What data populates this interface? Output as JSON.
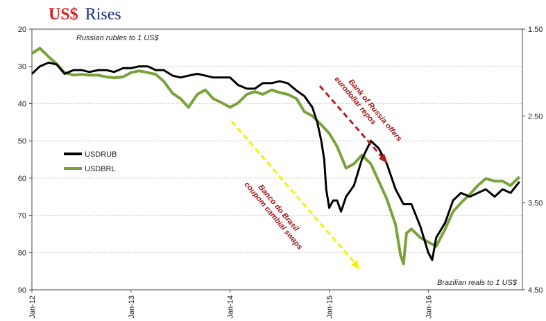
{
  "title": {
    "accent": "US$",
    "rest": "Rises"
  },
  "colors": {
    "title_accent": "#d32020",
    "title_rest": "#1f2a7a",
    "usdrub": "#000000",
    "usdbrl": "#79a23a",
    "arrow_yellow": "#f2f200",
    "arrow_red": "#b02020",
    "text_red": "#a01818"
  },
  "chart_data": {
    "type": "line",
    "x_ticks": [
      "Jan-12",
      "Jan-13",
      "Jan-14",
      "Jan-15",
      "Jan-16"
    ],
    "left_axis": {
      "label": "Russian rubles to 1 US$",
      "ticks": [
        20,
        30,
        40,
        50,
        60,
        70,
        80,
        90
      ],
      "range": [
        20,
        90
      ],
      "inverted": true
    },
    "right_axis": {
      "label": "Brazilian reals to 1 US$",
      "ticks": [
        "1.50",
        "2.50",
        "3.50",
        "4.50"
      ],
      "range": [
        1.5,
        4.5
      ],
      "inverted": true
    },
    "legend": [
      "USDRUB",
      "USDBRL"
    ],
    "annotations": [
      "Banco do Brasil coupom cambial swaps",
      "Bank of Russia offers eurodollar repos"
    ],
    "series": [
      {
        "name": "USDRUB",
        "axis": "left",
        "x": [
          2012.0,
          2012.08,
          2012.17,
          2012.25,
          2012.33,
          2012.42,
          2012.5,
          2012.58,
          2012.67,
          2012.75,
          2012.83,
          2012.92,
          2013.0,
          2013.08,
          2013.17,
          2013.25,
          2013.33,
          2013.42,
          2013.5,
          2013.58,
          2013.67,
          2013.75,
          2013.83,
          2013.92,
          2014.0,
          2014.08,
          2014.17,
          2014.25,
          2014.33,
          2014.42,
          2014.5,
          2014.58,
          2014.67,
          2014.75,
          2014.83,
          2014.88,
          2014.92,
          2014.95,
          2014.97,
          2015.0,
          2015.04,
          2015.08,
          2015.12,
          2015.17,
          2015.25,
          2015.33,
          2015.42,
          2015.5,
          2015.58,
          2015.67,
          2015.75,
          2015.83,
          2015.92,
          2016.0,
          2016.04,
          2016.08,
          2016.17,
          2016.25,
          2016.33,
          2016.42,
          2016.5,
          2016.58,
          2016.67,
          2016.75,
          2016.83,
          2016.92
        ],
        "y": [
          32,
          30,
          29,
          29.5,
          32,
          31,
          31,
          31.5,
          31,
          31,
          31.5,
          30.5,
          30.5,
          30,
          30,
          31,
          31,
          32.5,
          33,
          32.5,
          32,
          32.5,
          33,
          33,
          33,
          35,
          36,
          36,
          34.5,
          34.5,
          34,
          34.5,
          36.5,
          38,
          41,
          45,
          50,
          55,
          63,
          68,
          66,
          66,
          69,
          65,
          62,
          55,
          50,
          52,
          56,
          63,
          67,
          67,
          73,
          80,
          82,
          76,
          72,
          66,
          64,
          65,
          64,
          63,
          65,
          63,
          64,
          61
        ]
      },
      {
        "name": "USDBRL",
        "axis": "right",
        "x": [
          2012.0,
          2012.08,
          2012.17,
          2012.25,
          2012.33,
          2012.42,
          2012.5,
          2012.58,
          2012.67,
          2012.75,
          2012.83,
          2012.92,
          2013.0,
          2013.08,
          2013.17,
          2013.25,
          2013.33,
          2013.42,
          2013.5,
          2013.58,
          2013.67,
          2013.75,
          2013.83,
          2013.92,
          2014.0,
          2014.08,
          2014.17,
          2014.25,
          2014.33,
          2014.42,
          2014.5,
          2014.58,
          2014.67,
          2014.75,
          2014.83,
          2014.92,
          2015.0,
          2015.08,
          2015.17,
          2015.25,
          2015.33,
          2015.42,
          2015.5,
          2015.58,
          2015.67,
          2015.72,
          2015.75,
          2015.78,
          2015.83,
          2015.92,
          2016.0,
          2016.08,
          2016.17,
          2016.25,
          2016.33,
          2016.42,
          2016.5,
          2016.58,
          2016.67,
          2016.75,
          2016.83,
          2016.92
        ],
        "y": [
          1.78,
          1.72,
          1.82,
          1.9,
          2.0,
          2.03,
          2.02,
          2.03,
          2.03,
          2.05,
          2.06,
          2.05,
          2.0,
          1.98,
          2.0,
          2.02,
          2.1,
          2.24,
          2.3,
          2.4,
          2.25,
          2.2,
          2.3,
          2.35,
          2.4,
          2.35,
          2.25,
          2.22,
          2.25,
          2.2,
          2.23,
          2.25,
          2.3,
          2.45,
          2.5,
          2.6,
          2.7,
          2.85,
          3.1,
          3.05,
          2.95,
          3.05,
          3.25,
          3.45,
          3.75,
          4.1,
          4.2,
          3.85,
          3.8,
          3.9,
          3.95,
          4.0,
          3.8,
          3.6,
          3.5,
          3.4,
          3.3,
          3.22,
          3.25,
          3.25,
          3.3,
          3.2
        ]
      }
    ]
  }
}
